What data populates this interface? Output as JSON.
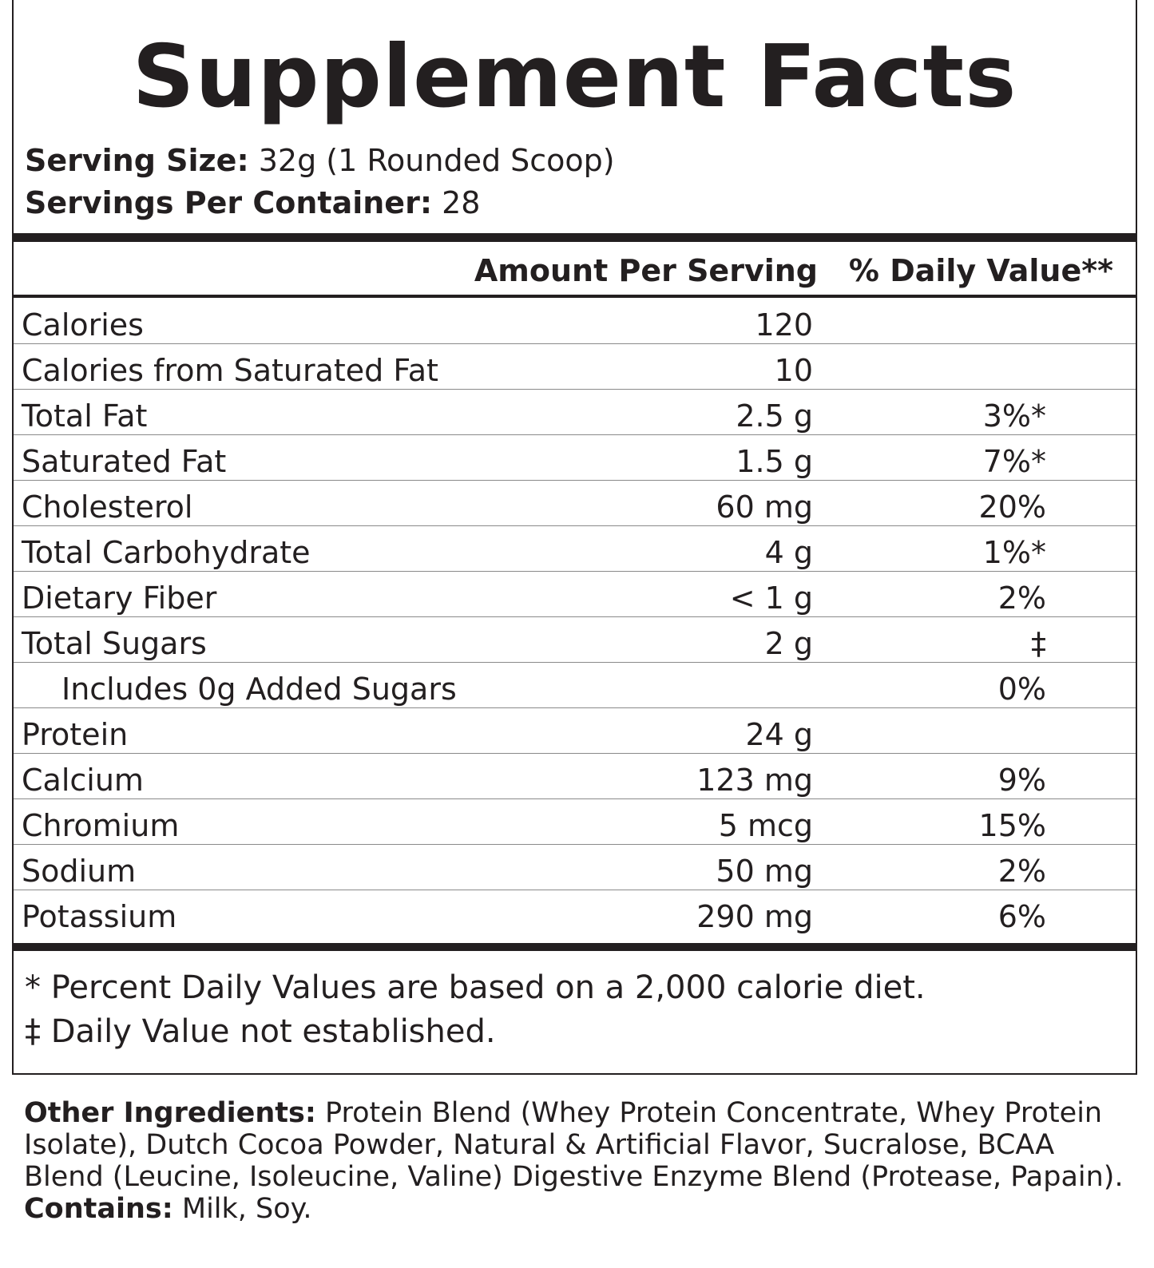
{
  "title": "Supplement Facts",
  "serving": {
    "size_label": "Serving Size:",
    "size_value": " 32g (1 Rounded Scoop)",
    "per_container_label": "Servings Per Container:",
    "per_container_value": "  28"
  },
  "columns": {
    "amount": "Amount Per Serving",
    "daily_value": "% Daily Value**"
  },
  "rows": [
    {
      "name": "Calories",
      "amount": "120",
      "dv": ""
    },
    {
      "name": "Calories from Saturated Fat",
      "amount": "10",
      "dv": ""
    },
    {
      "name": "Total Fat",
      "amount": "2.5 g",
      "dv": "3%*"
    },
    {
      "name": "Saturated Fat",
      "amount": "1.5 g",
      "dv": "7%*"
    },
    {
      "name": "Cholesterol",
      "amount": "60 mg",
      "dv": "20%"
    },
    {
      "name": "Total Carbohydrate",
      "amount": "4 g",
      "dv": "1%*"
    },
    {
      "name": "Dietary Fiber",
      "amount": "< 1 g",
      "dv": "2%"
    },
    {
      "name": "Total Sugars",
      "amount": "2 g",
      "dv": "‡"
    },
    {
      "name": "Includes 0g Added Sugars",
      "amount": "",
      "dv": "0%"
    },
    {
      "name": "Protein",
      "amount": "24 g",
      "dv": ""
    },
    {
      "name": "Calcium",
      "amount": "123 mg",
      "dv": "9%"
    },
    {
      "name": "Chromium",
      "amount": "5 mcg",
      "dv": "15%"
    },
    {
      "name": "Sodium",
      "amount": "50 mg",
      "dv": "2%"
    },
    {
      "name": "Potassium",
      "amount": "290 mg",
      "dv": "6%"
    }
  ],
  "footnotes": [
    "* Percent Daily Values are based on a 2,000 calorie diet.",
    "‡ Daily Value not established."
  ],
  "ingredients": {
    "label": "Other Ingredients:",
    "text": " Protein Blend (Whey Protein Concentrate, Whey Protein Isolate), Dutch Cocoa Powder, Natural & Artificial Flavor, Sucralose, BCAA Blend (Leucine, Isoleucine, Valine) Digestive Enzyme Blend (Protease, Papain).",
    "contains_label": "Contains:",
    "contains_text": " Milk, Soy."
  }
}
